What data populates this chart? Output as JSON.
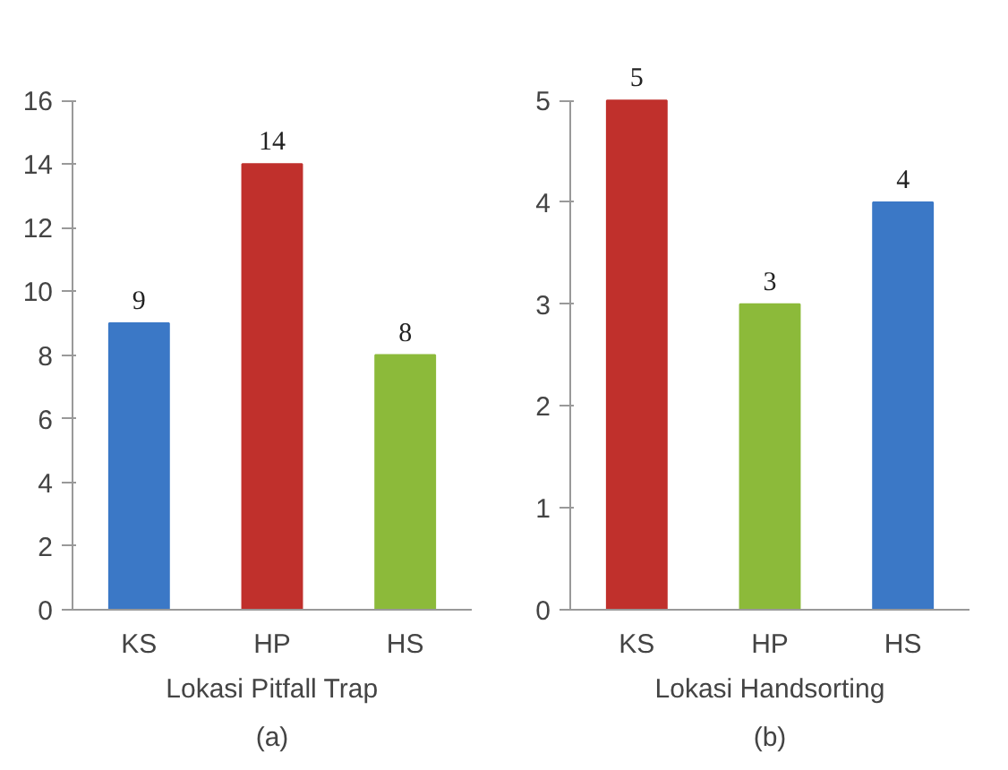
{
  "chart_data": [
    {
      "type": "bar",
      "categories": [
        "KS",
        "HP",
        "HS"
      ],
      "values": [
        9,
        14,
        8
      ],
      "colors": [
        "#3b78c6",
        "#c0302c",
        "#8cba3a"
      ],
      "ylim": [
        0,
        16
      ],
      "yticks": [
        0,
        2,
        4,
        6,
        8,
        10,
        12,
        14,
        16
      ],
      "xlabel": "Lokasi Pitfall Trap",
      "data_labels": true,
      "grid": false,
      "annotations": [
        "(a)"
      ]
    },
    {
      "type": "bar",
      "categories": [
        "KS",
        "HP",
        "HS"
      ],
      "values": [
        5,
        3,
        4
      ],
      "colors": [
        "#c0302c",
        "#8cba3a",
        "#3b78c6"
      ],
      "ylim": [
        0,
        5
      ],
      "yticks": [
        0,
        1,
        2,
        3,
        4,
        5
      ],
      "xlabel": "Lokasi Handsorting",
      "data_labels": true,
      "grid": false,
      "annotations": [
        "(b)"
      ]
    }
  ]
}
